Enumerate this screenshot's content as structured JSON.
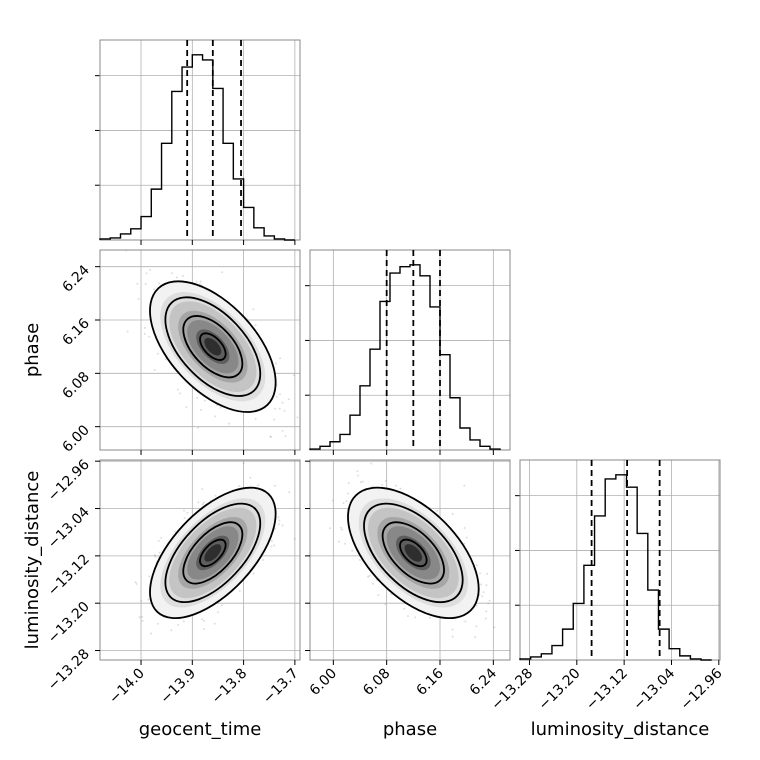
{
  "chart_data": {
    "type": "corner",
    "parameters": [
      "geocent_time",
      "phase",
      "luminosity_distance"
    ],
    "labels": {
      "x": [
        "geocent_time",
        "phase",
        "luminosity_distance"
      ],
      "y": [
        "phase",
        "luminosity_distance"
      ]
    },
    "ranges": {
      "geocent_time": [
        -14.08,
        -13.69
      ],
      "phase": [
        5.965,
        6.265
      ],
      "luminosity_distance": [
        -13.296,
        -12.958
      ]
    },
    "ticks": {
      "geocent_time": [
        {
          "v": -14.0,
          "label": "−14.0"
        },
        {
          "v": -13.9,
          "label": "−13.9"
        },
        {
          "v": -13.8,
          "label": "−13.8"
        },
        {
          "v": -13.7,
          "label": "−13.7"
        }
      ],
      "phase": [
        {
          "v": 6.0,
          "label": "6.00"
        },
        {
          "v": 6.08,
          "label": "6.08"
        },
        {
          "v": 6.16,
          "label": "6.16"
        },
        {
          "v": 6.24,
          "label": "6.24"
        }
      ],
      "luminosity_distance": [
        {
          "v": -13.28,
          "label": "−13.28"
        },
        {
          "v": -13.2,
          "label": "−13.20"
        },
        {
          "v": -13.12,
          "label": "−13.12"
        },
        {
          "v": -13.04,
          "label": "−13.04"
        },
        {
          "v": -12.96,
          "label": "−12.96"
        }
      ]
    },
    "histograms": [
      {
        "parameter": "geocent_time",
        "edges": [
          -14.08,
          -14.06,
          -14.04,
          -14.02,
          -14.0,
          -13.98,
          -13.96,
          -13.94,
          -13.92,
          -13.9,
          -13.88,
          -13.86,
          -13.84,
          -13.82,
          -13.8,
          -13.78,
          -13.76,
          -13.74,
          -13.72,
          -13.7
        ],
        "counts": [
          1,
          2,
          6,
          11,
          23,
          50,
          95,
          146,
          170,
          182,
          177,
          149,
          95,
          60,
          32,
          12,
          4,
          1,
          0
        ],
        "quantiles": [
          -13.91,
          -13.86,
          -13.805
        ]
      },
      {
        "parameter": "phase",
        "edges": [
          5.965,
          5.98,
          5.995,
          6.01,
          6.025,
          6.04,
          6.055,
          6.07,
          6.085,
          6.1,
          6.115,
          6.13,
          6.145,
          6.16,
          6.175,
          6.19,
          6.205,
          6.22,
          6.235,
          6.25
        ],
        "counts": [
          1,
          4,
          9,
          17,
          38,
          70,
          110,
          162,
          193,
          200,
          202,
          190,
          156,
          104,
          57,
          24,
          11,
          4,
          1
        ],
        "quantiles": [
          6.08,
          6.12,
          6.16
        ]
      },
      {
        "parameter": "luminosity_distance",
        "edges": [
          -13.296,
          -13.278,
          -13.26,
          -13.242,
          -13.224,
          -13.206,
          -13.188,
          -13.17,
          -13.152,
          -13.134,
          -13.116,
          -13.098,
          -13.08,
          -13.062,
          -13.044,
          -13.026,
          -13.008,
          -12.99,
          -12.972
        ],
        "counts": [
          1,
          3,
          6,
          14,
          30,
          55,
          92,
          140,
          176,
          180,
          168,
          123,
          68,
          30,
          11,
          4,
          1,
          0
        ],
        "quantiles": [
          -13.175,
          -13.115,
          -13.06
        ]
      }
    ],
    "joint": [
      {
        "x": "geocent_time",
        "y": "phase",
        "mean": [
          -13.86,
          6.12
        ],
        "sd": [
          0.05,
          0.04
        ],
        "corr": -0.55
      },
      {
        "x": "geocent_time",
        "y": "luminosity_distance",
        "mean": [
          -13.86,
          -13.115
        ],
        "sd": [
          0.05,
          0.045
        ],
        "corr": 0.6
      },
      {
        "x": "phase",
        "y": "luminosity_distance",
        "mean": [
          6.12,
          -13.115
        ],
        "sd": [
          0.04,
          0.045
        ],
        "corr": -0.55
      }
    ]
  }
}
